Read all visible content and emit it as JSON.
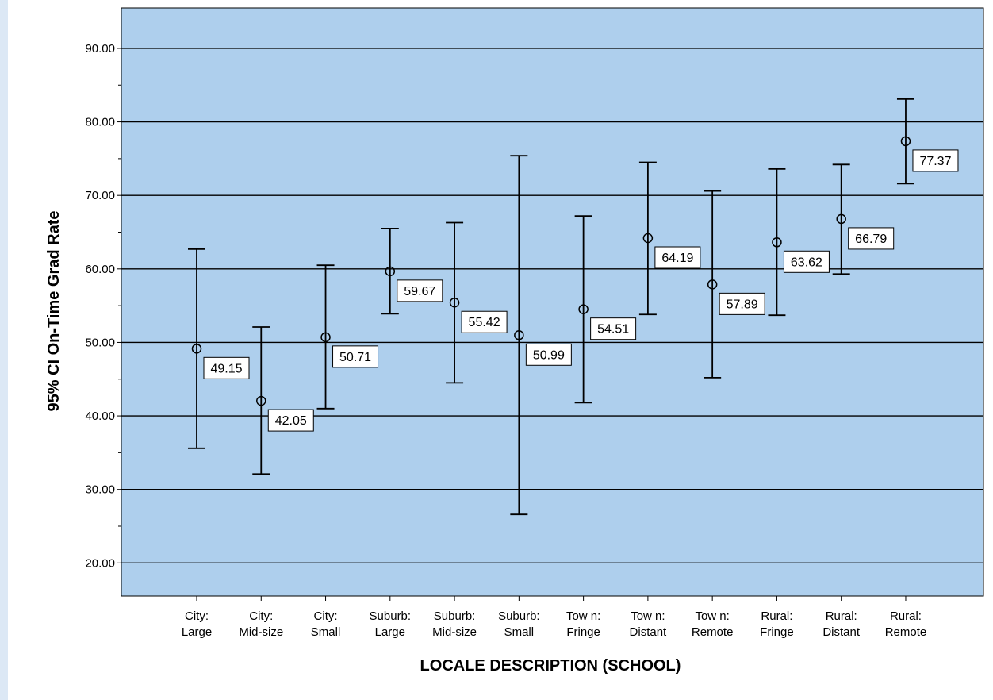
{
  "chart_data": {
    "type": "errorbar",
    "xlabel": "LOCALE DESCRIPTION (SCHOOL)",
    "ylabel": "95% CI On-Time Grad Rate",
    "ylim": [
      15.5,
      95.5
    ],
    "yticks": [
      "20.00",
      "30.00",
      "40.00",
      "50.00",
      "60.00",
      "70.00",
      "80.00",
      "90.00"
    ],
    "grid": true,
    "categories": [
      [
        "City:",
        "Large"
      ],
      [
        "City:",
        "Mid-size"
      ],
      [
        "City:",
        "Small"
      ],
      [
        "Suburb:",
        "Large"
      ],
      [
        "Suburb:",
        "Mid-size"
      ],
      [
        "Suburb:",
        "Small"
      ],
      [
        "Tow n:",
        "Fringe"
      ],
      [
        "Tow n:",
        "Distant"
      ],
      [
        "Tow n:",
        "Remote"
      ],
      [
        "Rural:",
        "Fringe"
      ],
      [
        "Rural:",
        "Distant"
      ],
      [
        "Rural:",
        "Remote"
      ]
    ],
    "means": [
      49.15,
      42.05,
      50.71,
      59.67,
      55.42,
      50.99,
      54.51,
      64.19,
      57.89,
      63.62,
      66.79,
      77.37
    ],
    "mean_labels": [
      "49.15",
      "42.05",
      "50.71",
      "59.67",
      "55.42",
      "50.99",
      "54.51",
      "64.19",
      "57.89",
      "63.62",
      "66.79",
      "77.37"
    ],
    "lower": [
      35.6,
      32.1,
      41.0,
      53.9,
      44.5,
      26.6,
      41.8,
      53.8,
      45.2,
      53.7,
      59.3,
      71.6
    ],
    "upper": [
      62.7,
      52.1,
      60.5,
      65.5,
      66.3,
      75.4,
      67.2,
      74.5,
      70.6,
      73.6,
      74.2,
      83.1
    ],
    "colors": {
      "plot_background": "#aecfed",
      "left_strip": "#dce8f5"
    }
  }
}
